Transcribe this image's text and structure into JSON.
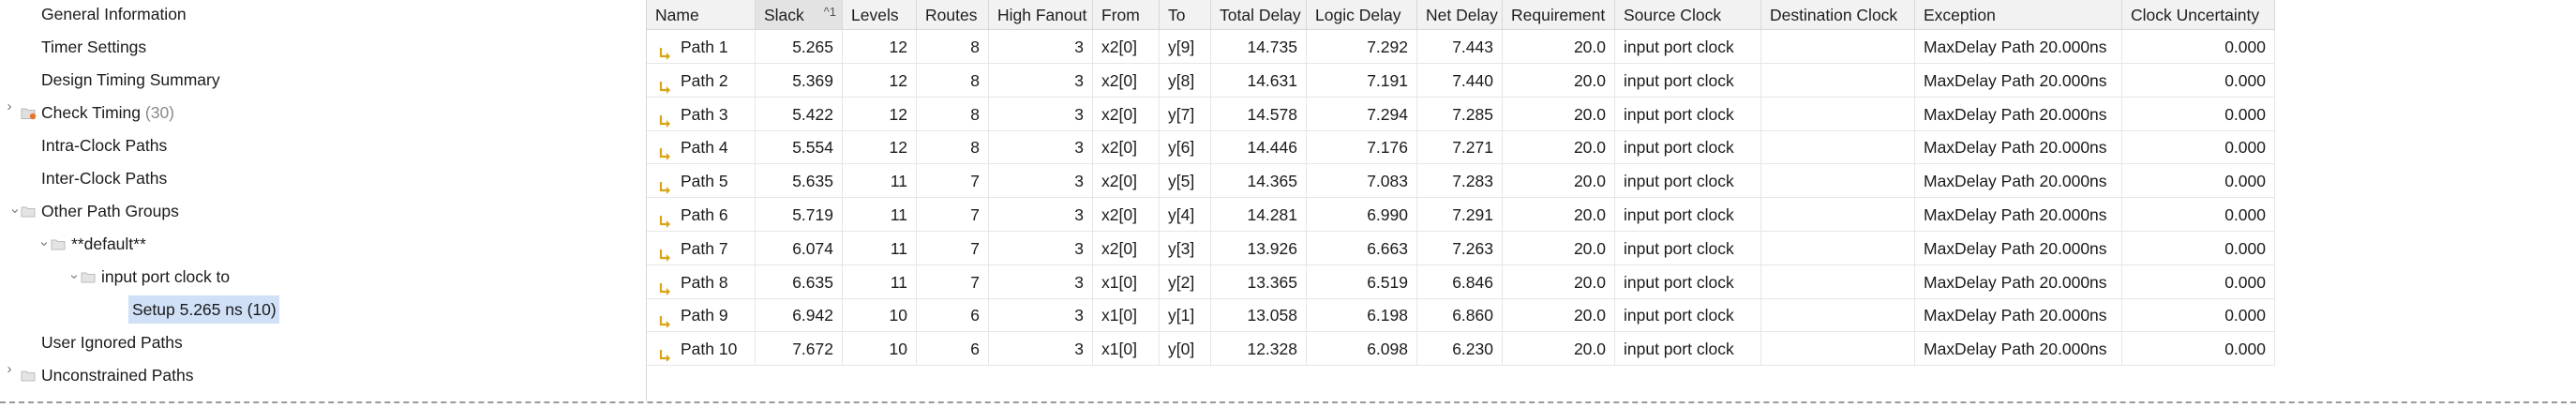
{
  "tree": {
    "general_information": "General Information",
    "timer_settings": "Timer Settings",
    "design_timing_summary": "Design Timing Summary",
    "check_timing": "Check Timing",
    "check_timing_count": "(30)",
    "intra_clock_paths": "Intra-Clock Paths",
    "inter_clock_paths": "Inter-Clock Paths",
    "other_path_groups": "Other Path Groups",
    "default_group": "**default**",
    "input_port_clock_to": "input port clock to",
    "setup_summary": "Setup 5.265 ns (10)",
    "user_ignored_paths": "User Ignored Paths",
    "unconstrained_paths": "Unconstrained Paths"
  },
  "table": {
    "headers": [
      "Name",
      "Slack",
      "Levels",
      "Routes",
      "High Fanout",
      "From",
      "To",
      "Total Delay",
      "Logic Delay",
      "Net Delay",
      "Requirement",
      "Source Clock",
      "Destination Clock",
      "Exception",
      "Clock Uncertainty"
    ],
    "sort_indicator": "^1",
    "rows": [
      [
        "Path 1",
        "5.265",
        "12",
        "8",
        "3",
        "x2[0]",
        "y[9]",
        "14.735",
        "7.292",
        "7.443",
        "20.0",
        "input port clock",
        "",
        "MaxDelay Path 20.000ns",
        "0.000"
      ],
      [
        "Path 2",
        "5.369",
        "12",
        "8",
        "3",
        "x2[0]",
        "y[8]",
        "14.631",
        "7.191",
        "7.440",
        "20.0",
        "input port clock",
        "",
        "MaxDelay Path 20.000ns",
        "0.000"
      ],
      [
        "Path 3",
        "5.422",
        "12",
        "8",
        "3",
        "x2[0]",
        "y[7]",
        "14.578",
        "7.294",
        "7.285",
        "20.0",
        "input port clock",
        "",
        "MaxDelay Path 20.000ns",
        "0.000"
      ],
      [
        "Path 4",
        "5.554",
        "12",
        "8",
        "3",
        "x2[0]",
        "y[6]",
        "14.446",
        "7.176",
        "7.271",
        "20.0",
        "input port clock",
        "",
        "MaxDelay Path 20.000ns",
        "0.000"
      ],
      [
        "Path 5",
        "5.635",
        "11",
        "7",
        "3",
        "x2[0]",
        "y[5]",
        "14.365",
        "7.083",
        "7.283",
        "20.0",
        "input port clock",
        "",
        "MaxDelay Path 20.000ns",
        "0.000"
      ],
      [
        "Path 6",
        "5.719",
        "11",
        "7",
        "3",
        "x2[0]",
        "y[4]",
        "14.281",
        "6.990",
        "7.291",
        "20.0",
        "input port clock",
        "",
        "MaxDelay Path 20.000ns",
        "0.000"
      ],
      [
        "Path 7",
        "6.074",
        "11",
        "7",
        "3",
        "x2[0]",
        "y[3]",
        "13.926",
        "6.663",
        "7.263",
        "20.0",
        "input port clock",
        "",
        "MaxDelay Path 20.000ns",
        "0.000"
      ],
      [
        "Path 8",
        "6.635",
        "11",
        "7",
        "3",
        "x1[0]",
        "y[2]",
        "13.365",
        "6.519",
        "6.846",
        "20.0",
        "input port clock",
        "",
        "MaxDelay Path 20.000ns",
        "0.000"
      ],
      [
        "Path 9",
        "6.942",
        "10",
        "6",
        "3",
        "x1[0]",
        "y[1]",
        "13.058",
        "6.198",
        "6.860",
        "20.0",
        "input port clock",
        "",
        "MaxDelay Path 20.000ns",
        "0.000"
      ],
      [
        "Path 10",
        "7.672",
        "10",
        "6",
        "3",
        "x1[0]",
        "y[0]",
        "12.328",
        "6.098",
        "6.230",
        "20.0",
        "input port clock",
        "",
        "MaxDelay Path 20.000ns",
        "0.000"
      ]
    ]
  },
  "colors": {
    "selection": "#cfe0f7",
    "path_icon": "#d9a514",
    "warning_dot": "#e8762b",
    "folder": "#c9c9c9"
  },
  "icons": {
    "path": "path-arrow-icon",
    "folder": "folder-icon",
    "warning_folder": "warning-folder-icon",
    "expand": "chevron-right-icon",
    "collapse": "chevron-down-icon"
  }
}
